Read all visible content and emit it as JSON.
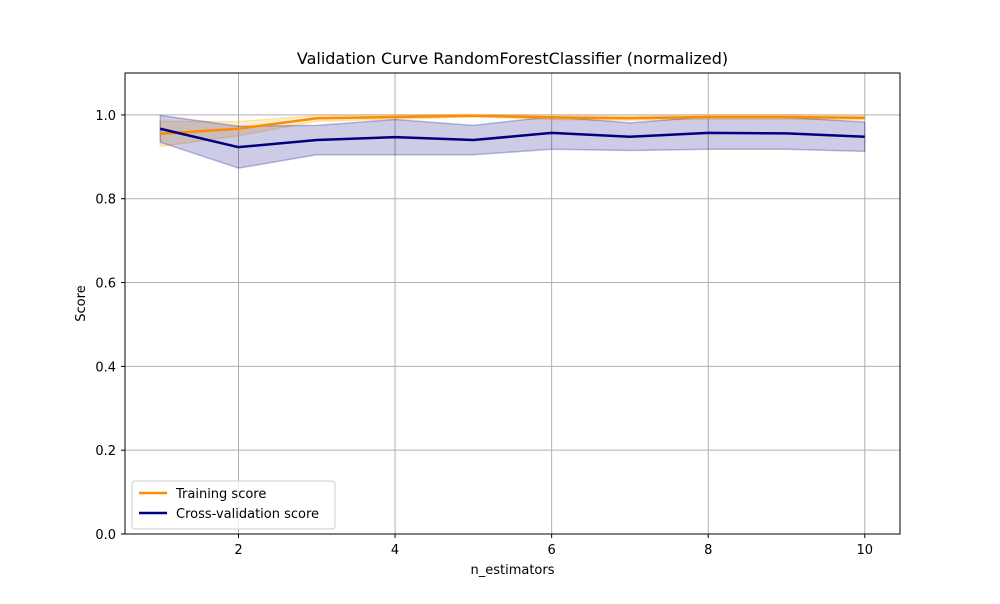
{
  "chart_data": {
    "type": "line",
    "title": "Validation Curve RandomForestClassifier (normalized)",
    "xlabel": "n_estimators",
    "ylabel": "Score",
    "xlim": [
      0.55,
      10.45
    ],
    "ylim": [
      0.0,
      1.1
    ],
    "xticks": [
      2,
      4,
      6,
      8,
      10
    ],
    "yticks": [
      0.0,
      0.2,
      0.4,
      0.6,
      0.8,
      1.0
    ],
    "xtick_labels": [
      "2",
      "4",
      "6",
      "8",
      "10"
    ],
    "ytick_labels": [
      "0.0",
      "0.2",
      "0.4",
      "0.6",
      "0.8",
      "1.0"
    ],
    "grid": true,
    "legend_position": "lower-left",
    "x": [
      1,
      2,
      3,
      4,
      5,
      6,
      7,
      8,
      9,
      10
    ],
    "series": [
      {
        "name": "Training score",
        "color": "#ff8c00",
        "band_color": "#ffa500",
        "values": [
          0.955,
          0.967,
          0.992,
          0.995,
          0.998,
          0.994,
          0.992,
          0.995,
          0.995,
          0.993
        ],
        "lower": [
          0.925,
          0.95,
          0.985,
          0.99,
          0.995,
          0.989,
          0.987,
          0.99,
          0.99,
          0.988
        ],
        "upper": [
          0.985,
          0.984,
          0.999,
          1.0,
          1.001,
          0.999,
          0.997,
          1.0,
          1.0,
          0.998
        ]
      },
      {
        "name": "Cross-validation score",
        "color": "#000080",
        "band_color": "#000080",
        "values": [
          0.967,
          0.923,
          0.94,
          0.947,
          0.94,
          0.957,
          0.948,
          0.957,
          0.956,
          0.948
        ],
        "lower": [
          0.935,
          0.873,
          0.905,
          0.905,
          0.905,
          0.918,
          0.915,
          0.918,
          0.918,
          0.913
        ],
        "upper": [
          0.999,
          0.973,
          0.975,
          0.989,
          0.975,
          0.996,
          0.981,
          0.996,
          0.994,
          0.983
        ]
      }
    ]
  }
}
